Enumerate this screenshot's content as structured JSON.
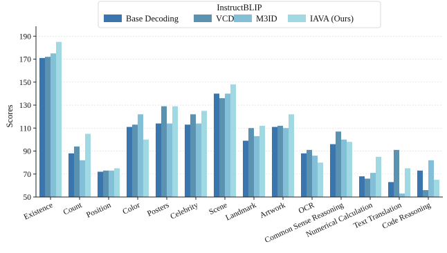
{
  "chart_data": {
    "type": "bar",
    "legend_title": "InstructBLIP",
    "legend_position": "top-center",
    "ylabel": "Scores",
    "xlabel": "",
    "ylim": [
      50,
      195
    ],
    "yticks": [
      50,
      70,
      90,
      110,
      130,
      150,
      170,
      190
    ],
    "grid": true,
    "categories": [
      "Existence",
      "Count",
      "Position",
      "Color",
      "Posters",
      "Celebrity",
      "Scene",
      "Landmark",
      "Artwork",
      "OCR",
      "Common Sense Reasoning",
      "Numerical Calculation",
      "Text Translation",
      "Code Reasoning"
    ],
    "series": [
      {
        "name": "Base Decoding",
        "color": "#3a75ae",
        "values": [
          171,
          88,
          72,
          111,
          114,
          113,
          140,
          99,
          111,
          88,
          96,
          68,
          63,
          73
        ]
      },
      {
        "name": "VCD",
        "color": "#5b92b0",
        "values": [
          172,
          94,
          73,
          113,
          129,
          122,
          136,
          110,
          112,
          91,
          107,
          66,
          91,
          56
        ]
      },
      {
        "name": "M3ID",
        "color": "#83c0d8",
        "values": [
          175,
          82,
          73,
          122,
          114,
          114,
          140,
          103,
          110,
          86,
          100,
          71,
          53,
          82
        ]
      },
      {
        "name": "IAVA (Ours)",
        "color": "#a0d9e2",
        "values": [
          185,
          105,
          75,
          100,
          129,
          125,
          148,
          112,
          122,
          80,
          98,
          85,
          75,
          65
        ]
      }
    ]
  }
}
